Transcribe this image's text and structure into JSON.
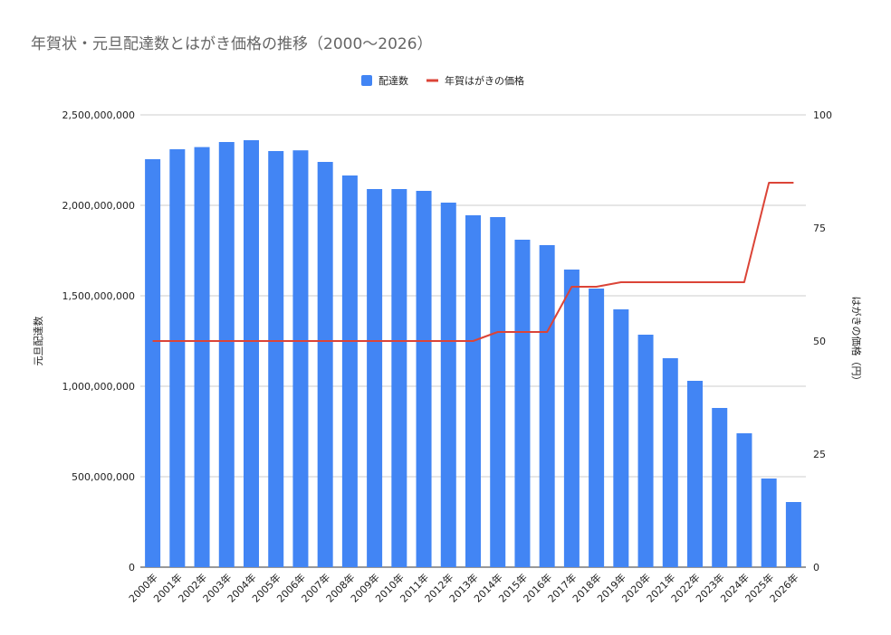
{
  "chart_data": {
    "type": "bar",
    "title": "年賀状・元旦配達数とはがき価格の推移（2000～2026）",
    "categories": [
      "2000年",
      "2001年",
      "2002年",
      "2003年",
      "2004年",
      "2005年",
      "2006年",
      "2007年",
      "2008年",
      "2009年",
      "2010年",
      "2011年",
      "2012年",
      "2013年",
      "2014年",
      "2015年",
      "2016年",
      "2017年",
      "2018年",
      "2019年",
      "2020年",
      "2021年",
      "2022年",
      "2023年",
      "2024年",
      "2025年",
      "2026年"
    ],
    "series": [
      {
        "name": "配達数",
        "type": "bar",
        "axis": "left",
        "color": "#4285f4",
        "values": [
          2255000000,
          2310000000,
          2322000000,
          2350000000,
          2360000000,
          2300000000,
          2304000000,
          2240000000,
          2165000000,
          2090000000,
          2090000000,
          2080000000,
          2015000000,
          1945000000,
          1935000000,
          1810000000,
          1780000000,
          1645000000,
          1540000000,
          1425000000,
          1285000000,
          1155000000,
          1030000000,
          880000000,
          740000000,
          490000000,
          360000000
        ]
      },
      {
        "name": "年賀はがきの価格",
        "type": "line",
        "axis": "right",
        "color": "#db4437",
        "values": [
          50,
          50,
          50,
          50,
          50,
          50,
          50,
          50,
          50,
          50,
          50,
          50,
          50,
          50,
          52,
          52,
          52,
          62,
          62,
          63,
          63,
          63,
          63,
          63,
          63,
          85,
          85
        ]
      }
    ],
    "y_left": {
      "label": "元旦配達数",
      "min": 0,
      "max": 2500000000,
      "ticks": [
        0,
        500000000,
        1000000000,
        1500000000,
        2000000000,
        2500000000
      ],
      "tick_labels": [
        "0",
        "500,000,000",
        "1,000,000,000",
        "1,500,000,000",
        "2,000,000,000",
        "2,500,000,000"
      ]
    },
    "y_right": {
      "label": "はがきの価格（円）",
      "min": 0,
      "max": 100,
      "ticks": [
        0,
        25,
        50,
        75,
        100
      ],
      "tick_labels": [
        "0",
        "25",
        "50",
        "75",
        "100"
      ]
    },
    "grid": true,
    "legend_position": "top-center"
  }
}
